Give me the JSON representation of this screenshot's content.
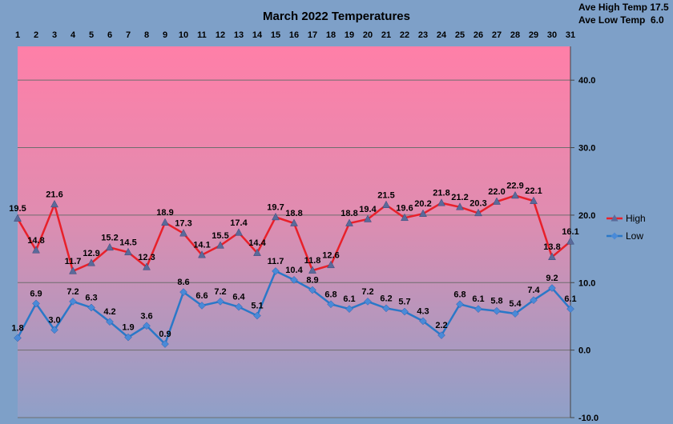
{
  "chart_data": {
    "type": "line",
    "title": "March 2022 Temperatures",
    "notes": [
      "Ave High Temp 17.5",
      "Ave Low Temp  6.0"
    ],
    "x": [
      1,
      2,
      3,
      4,
      5,
      6,
      7,
      8,
      9,
      10,
      11,
      12,
      13,
      14,
      15,
      16,
      17,
      18,
      19,
      20,
      21,
      22,
      23,
      24,
      25,
      26,
      27,
      28,
      29,
      30,
      31
    ],
    "ylim": [
      -10,
      45
    ],
    "yticks": [
      "-10.0",
      "0.0",
      "10.0",
      "20.0",
      "30.0",
      "40.0"
    ],
    "grid": true,
    "legend": "right",
    "series": [
      {
        "name": "High",
        "color": "#e8202a",
        "values": [
          19.5,
          14.8,
          21.6,
          11.7,
          12.9,
          15.2,
          14.5,
          12.3,
          18.9,
          17.3,
          14.1,
          15.5,
          17.4,
          14.4,
          19.7,
          18.8,
          11.8,
          12.6,
          18.8,
          19.4,
          21.5,
          19.6,
          20.2,
          21.8,
          21.2,
          20.3,
          22.0,
          22.9,
          22.1,
          13.8,
          16.1
        ],
        "labels": [
          "19.5",
          "14.8",
          "21.6",
          "11.7",
          "12.9",
          "15.2",
          "14.5",
          "12.3",
          "18.9",
          "17.3",
          "14.1",
          "15.5",
          "17.4",
          "14.4",
          "19.7",
          "18.8",
          "11.8",
          "12.6",
          "18.8",
          "19.4",
          "21.5",
          "19.6",
          "20.2",
          "21.8",
          "21.2",
          "20.3",
          "22.0",
          "22.9",
          "22.1",
          "13.8",
          "16.1"
        ]
      },
      {
        "name": "Low",
        "color": "#2a78c8",
        "values": [
          1.8,
          6.9,
          3.0,
          7.2,
          6.3,
          4.2,
          1.9,
          3.6,
          0.9,
          8.6,
          6.6,
          7.2,
          6.4,
          5.1,
          11.7,
          10.4,
          8.9,
          6.8,
          6.1,
          7.2,
          6.2,
          5.7,
          4.3,
          2.2,
          6.8,
          6.1,
          5.8,
          5.4,
          7.4,
          9.2,
          6.1
        ],
        "labels": [
          "1.8",
          "6.9",
          "3.0",
          "7.2",
          "6.3",
          "4.2",
          "1.9",
          "3.6",
          "0.9",
          "8.6",
          "6.6",
          "7.2",
          "6.4",
          "5.1",
          "11.7",
          "10.4",
          "8.9",
          "6.8",
          "6.1",
          "7.2",
          "6.2",
          "5.7",
          "4.3",
          "2.2",
          "6.8",
          "6.1",
          "5.8",
          "5.4",
          "7.4",
          "9.2",
          "6.1"
        ]
      }
    ]
  }
}
